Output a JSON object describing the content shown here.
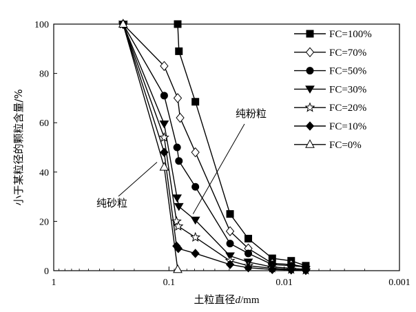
{
  "chart_data": {
    "type": "line",
    "xlabel": "土粒直径d/mm",
    "ylabel": "小于某粒径的颗粒含量/%",
    "x_scale": "log",
    "x_reversed": true,
    "xlim": [
      1,
      0.001
    ],
    "ylim": [
      0,
      100
    ],
    "x_ticks": [
      1,
      0.1,
      0.01,
      0.001
    ],
    "x_tick_labels": [
      "1",
      "0.1",
      "0.01",
      "0.001"
    ],
    "y_ticks": [
      0,
      20,
      40,
      60,
      80,
      100
    ],
    "y_tick_labels": [
      "0",
      "20",
      "40",
      "60",
      "80",
      "100"
    ],
    "grid": false,
    "legend_position": "top-right",
    "series": [
      {
        "name": "FC=100%",
        "marker": "square-filled",
        "x": [
          0.084,
          0.082,
          0.059,
          0.0295,
          0.0205,
          0.0127,
          0.0087,
          0.0065
        ],
        "y": [
          100,
          89,
          68.5,
          23,
          13,
          5,
          4,
          2
        ]
      },
      {
        "name": "FC=70%",
        "marker": "diamond-open",
        "x": [
          0.25,
          0.11,
          0.084,
          0.08,
          0.059,
          0.0295,
          0.0205,
          0.0127,
          0.0087,
          0.0065
        ],
        "y": [
          100,
          83,
          70,
          62,
          48,
          16,
          9,
          3,
          2.5,
          1.5
        ]
      },
      {
        "name": "FC=50%",
        "marker": "circle-filled",
        "x": [
          0.25,
          0.11,
          0.085,
          0.082,
          0.059,
          0.0295,
          0.0205,
          0.0127,
          0.0087,
          0.0065
        ],
        "y": [
          100,
          71,
          50,
          44.5,
          34,
          11,
          7,
          2.5,
          2,
          1.5
        ]
      },
      {
        "name": "FC=30%",
        "marker": "triangle-down-filled",
        "x": [
          0.25,
          0.11,
          0.085,
          0.082,
          0.059,
          0.0295,
          0.0205,
          0.0127,
          0.0087,
          0.0065
        ],
        "y": [
          100,
          59.5,
          29.5,
          26,
          20.5,
          6,
          3.5,
          1.5,
          1,
          0.5
        ]
      },
      {
        "name": "FC=20%",
        "marker": "star-open",
        "x": [
          0.25,
          0.11,
          0.086,
          0.083,
          0.059,
          0.0295,
          0.0205,
          0.0127,
          0.0087,
          0.0065
        ],
        "y": [
          100,
          54,
          20,
          18,
          13.5,
          4,
          2,
          1,
          0.5,
          0.2
        ]
      },
      {
        "name": "FC=10%",
        "marker": "diamond-filled",
        "x": [
          0.25,
          0.11,
          0.086,
          0.083,
          0.059,
          0.0295,
          0.0205,
          0.0127,
          0.0087,
          0.0065
        ],
        "y": [
          100,
          48,
          10,
          9,
          7,
          2.5,
          1.2,
          0.5,
          0.3,
          0.1
        ]
      },
      {
        "name": "FC=0%",
        "marker": "triangle-up-open",
        "x": [
          0.25,
          0.11,
          0.084
        ],
        "y": [
          100,
          42,
          0.5
        ]
      }
    ],
    "annotations": [
      {
        "text": "纯粉粒",
        "points_to": "FC=100%",
        "at": {
          "x": 0.0618,
          "y": 23
        }
      },
      {
        "text": "纯砂粒",
        "points_to": "FC=0%",
        "at": {
          "x": 0.127,
          "y": 44
        }
      }
    ]
  }
}
